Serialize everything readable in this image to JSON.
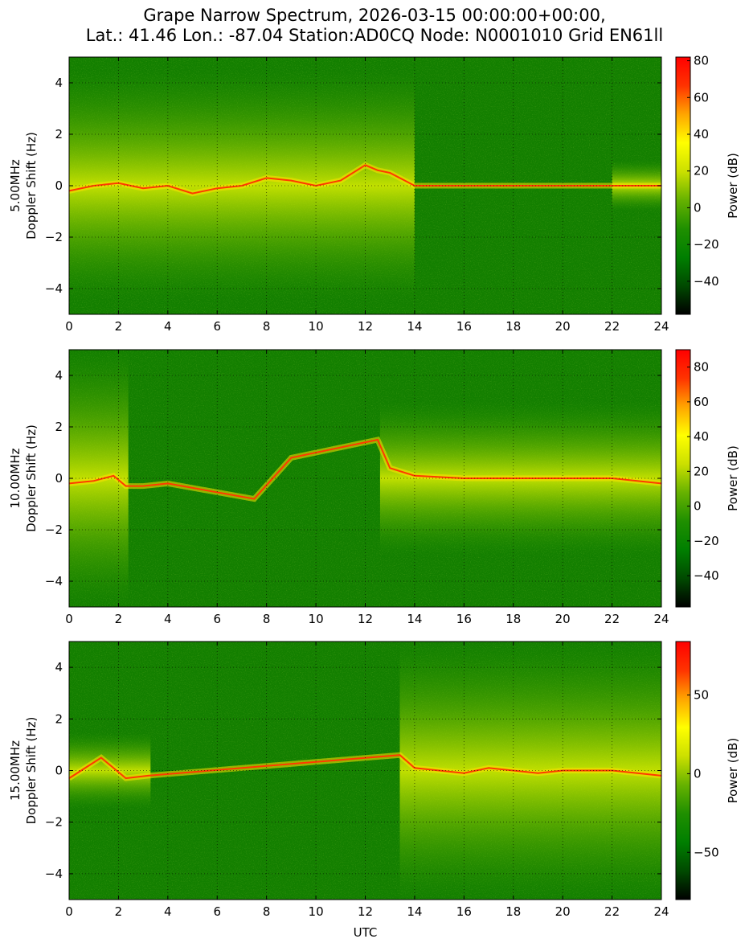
{
  "title_line1": "Grape Narrow Spectrum, 2026-03-15 00:00:00+00:00,",
  "title_line2": "Lat.: 41.46 Lon.: -87.04 Station:AD0CQ Node: N0001010 Grid EN61ll",
  "colors": {
    "colormap": [
      "#000000",
      "#004a00",
      "#007f00",
      "#1f8f00",
      "#66b200",
      "#cce000",
      "#ffff00",
      "#ffa500",
      "#ff3300",
      "#ff0000"
    ],
    "background": "#ffffff",
    "grid": "#000000"
  },
  "chart_data": [
    {
      "type": "heatmap",
      "band_label": "5.00MHz",
      "ylabel": "Doppler Shift (Hz)",
      "xlabel": "",
      "xlim": [
        0,
        24
      ],
      "ylim": [
        -5,
        5
      ],
      "x_ticks": [
        "0",
        "2",
        "4",
        "6",
        "8",
        "10",
        "12",
        "14",
        "16",
        "18",
        "20",
        "22",
        "24"
      ],
      "y_ticks": [
        "−4",
        "−2",
        "0",
        "2",
        "4"
      ],
      "grid": true,
      "colorbar": {
        "label": "Power (dB)",
        "range": [
          -58,
          82
        ],
        "ticks": [
          "80",
          "60",
          "40",
          "20",
          "0",
          "−20",
          "−40"
        ]
      },
      "carrier_trace": [
        {
          "x": 0,
          "y": -0.2
        },
        {
          "x": 1,
          "y": 0.0
        },
        {
          "x": 2,
          "y": 0.1
        },
        {
          "x": 3,
          "y": -0.1
        },
        {
          "x": 4,
          "y": 0.0
        },
        {
          "x": 5,
          "y": -0.3
        },
        {
          "x": 6,
          "y": -0.1
        },
        {
          "x": 7,
          "y": 0.0
        },
        {
          "x": 8,
          "y": 0.3
        },
        {
          "x": 9,
          "y": 0.2
        },
        {
          "x": 10,
          "y": 0.0
        },
        {
          "x": 11,
          "y": 0.2
        },
        {
          "x": 12,
          "y": 0.8
        },
        {
          "x": 12.5,
          "y": 0.6
        },
        {
          "x": 13,
          "y": 0.5
        },
        {
          "x": 14,
          "y": 0.0
        },
        {
          "x": 16,
          "y": 0.0
        },
        {
          "x": 18,
          "y": 0.0
        },
        {
          "x": 20,
          "y": 0.0
        },
        {
          "x": 22,
          "y": 0.0
        },
        {
          "x": 24,
          "y": 0.0
        }
      ],
      "active_periods": [
        {
          "start": 0,
          "end": 14,
          "spread_hz": 4.5
        },
        {
          "start": 22,
          "end": 24,
          "spread_hz": 1.0
        }
      ]
    },
    {
      "type": "heatmap",
      "band_label": "10.00MHz",
      "ylabel": "Doppler Shift (Hz)",
      "xlabel": "",
      "xlim": [
        0,
        24
      ],
      "ylim": [
        -5,
        5
      ],
      "x_ticks": [
        "0",
        "2",
        "4",
        "6",
        "8",
        "10",
        "12",
        "14",
        "16",
        "18",
        "20",
        "22",
        "24"
      ],
      "y_ticks": [
        "−4",
        "−2",
        "0",
        "2",
        "4"
      ],
      "grid": true,
      "colorbar": {
        "label": "Power (dB)",
        "range": [
          -58,
          90
        ],
        "ticks": [
          "80",
          "60",
          "40",
          "20",
          "0",
          "−20",
          "−40"
        ]
      },
      "carrier_trace": [
        {
          "x": 0,
          "y": -0.2
        },
        {
          "x": 1,
          "y": -0.1
        },
        {
          "x": 1.8,
          "y": 0.1
        },
        {
          "x": 2.3,
          "y": -0.3
        },
        {
          "x": 3,
          "y": -0.3
        },
        {
          "x": 4,
          "y": -0.2
        },
        {
          "x": 7.5,
          "y": -0.8
        },
        {
          "x": 9,
          "y": 0.8
        },
        {
          "x": 12.5,
          "y": 1.5
        },
        {
          "x": 13,
          "y": 0.4
        },
        {
          "x": 14,
          "y": 0.1
        },
        {
          "x": 16,
          "y": 0.0
        },
        {
          "x": 18,
          "y": 0.0
        },
        {
          "x": 20,
          "y": 0.0
        },
        {
          "x": 22,
          "y": 0.0
        },
        {
          "x": 24,
          "y": -0.2
        }
      ],
      "active_periods": [
        {
          "start": 0,
          "end": 2.4,
          "spread_hz": 5.0
        },
        {
          "start": 12.6,
          "end": 24,
          "spread_hz": 3.0
        }
      ]
    },
    {
      "type": "heatmap",
      "band_label": "15.00MHz",
      "ylabel": "Doppler Shift (Hz)",
      "xlabel": "UTC",
      "xlim": [
        0,
        24
      ],
      "ylim": [
        -5,
        5
      ],
      "x_ticks": [
        "0",
        "2",
        "4",
        "6",
        "8",
        "10",
        "12",
        "14",
        "16",
        "18",
        "20",
        "22",
        "24"
      ],
      "y_ticks": [
        "−4",
        "−2",
        "0",
        "2",
        "4"
      ],
      "grid": true,
      "colorbar": {
        "label": "Power (dB)",
        "range": [
          -80,
          84
        ],
        "ticks": [
          "50",
          "0",
          "−50"
        ]
      },
      "carrier_trace": [
        {
          "x": 0,
          "y": -0.3
        },
        {
          "x": 1.3,
          "y": 0.5
        },
        {
          "x": 2.3,
          "y": -0.3
        },
        {
          "x": 3.2,
          "y": -0.2
        },
        {
          "x": 13.4,
          "y": 0.6
        },
        {
          "x": 14,
          "y": 0.1
        },
        {
          "x": 15,
          "y": 0.0
        },
        {
          "x": 16,
          "y": -0.1
        },
        {
          "x": 17,
          "y": 0.1
        },
        {
          "x": 18,
          "y": 0.0
        },
        {
          "x": 19,
          "y": -0.1
        },
        {
          "x": 20,
          "y": 0.0
        },
        {
          "x": 22,
          "y": 0.0
        },
        {
          "x": 24,
          "y": -0.2
        }
      ],
      "active_periods": [
        {
          "start": 0,
          "end": 3.3,
          "spread_hz": 1.5
        },
        {
          "start": 13.4,
          "end": 24,
          "spread_hz": 5.0
        }
      ]
    }
  ]
}
